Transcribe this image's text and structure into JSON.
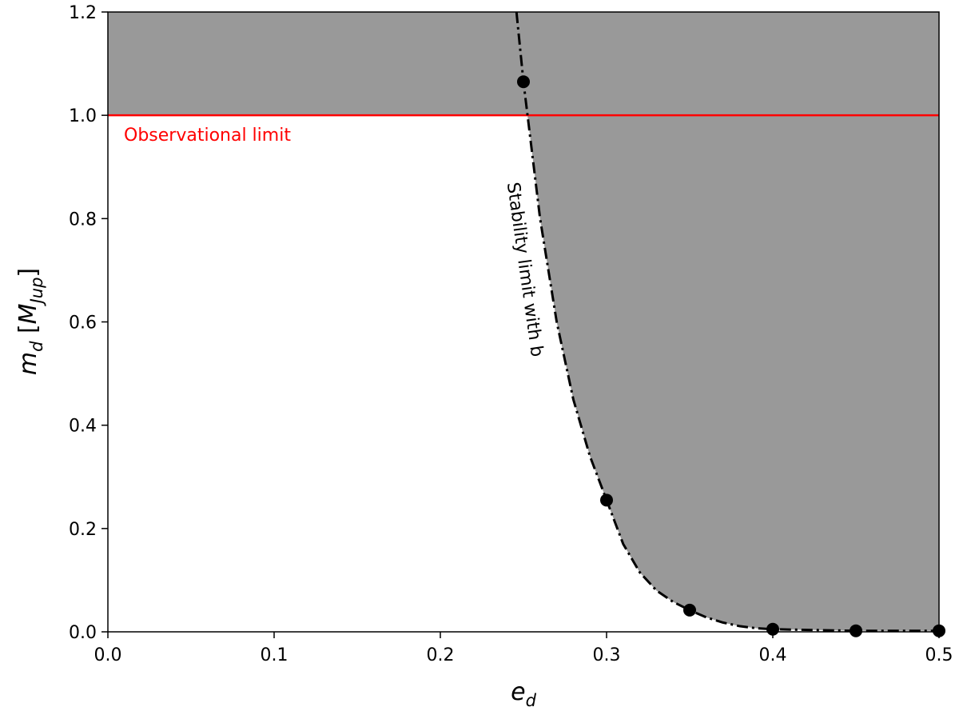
{
  "chart_data": {
    "type": "line",
    "xlabel": [
      "e",
      "d"
    ],
    "ylabel": [
      "m",
      "d",
      " [",
      "M",
      "Jup",
      "]"
    ],
    "xlim": [
      0,
      0.5
    ],
    "ylim": [
      0,
      1.2
    ],
    "xticks": [
      {
        "value": 0,
        "label": "0.0"
      },
      0.1,
      0.2,
      0.3,
      0.4,
      0.5
    ],
    "yticks": [
      {
        "value": 0,
        "label": "0.0"
      },
      0.2,
      0.4,
      0.6,
      0.8,
      {
        "value": 1,
        "label": "1.0"
      },
      1.2
    ],
    "hline": {
      "value": 1.0,
      "label": "Observational limit",
      "color": "#ff0000"
    },
    "region_color": "#999999",
    "curve": {
      "name": "Stability limit with b",
      "color": "#000000",
      "x": [
        0.2458,
        0.25,
        0.26,
        0.27,
        0.28,
        0.29,
        0.3,
        0.31,
        0.32,
        0.33,
        0.34,
        0.35,
        0.36,
        0.37,
        0.38,
        0.39,
        0.4,
        0.45,
        0.5
      ],
      "values": [
        1.2,
        1.065,
        0.8,
        0.6,
        0.45,
        0.34,
        0.255,
        0.17,
        0.115,
        0.08,
        0.058,
        0.042,
        0.028,
        0.018,
        0.011,
        0.007,
        0.005,
        0.002,
        0.002
      ]
    },
    "points": {
      "color": "#000000",
      "x": [
        0.25,
        0.3,
        0.35,
        0.4,
        0.45,
        0.5
      ],
      "values": [
        1.065,
        0.255,
        0.042,
        0.005,
        0.002,
        0.002
      ]
    }
  }
}
